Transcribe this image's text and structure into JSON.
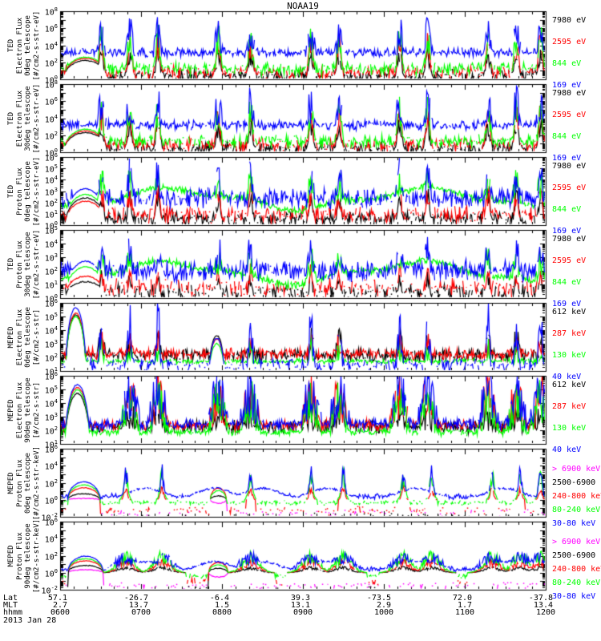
{
  "title": "NOAA19",
  "log_base": "10",
  "footer": {
    "row_labels": [
      "Lat",
      "MLT",
      "hhmm"
    ],
    "date": "2013 Jan 28"
  },
  "colors": {
    "black": "#000000",
    "red": "#ff0000",
    "green": "#00ff00",
    "blue": "#0000ff",
    "magenta": "#ff00ff",
    "frame": "#000000",
    "background": "#ffffff"
  },
  "chart_data": {
    "type": "line",
    "title": "NOAA19",
    "x_axis": {
      "label_rows": [
        "Lat",
        "MLT",
        "hhmm"
      ],
      "hours_span": 6,
      "ticks": [
        {
          "hhmm": "0600",
          "lat": "57.1",
          "mlt": "2.7"
        },
        {
          "hhmm": "0700",
          "lat": "-26.7",
          "mlt": "13.7"
        },
        {
          "hhmm": "0800",
          "lat": "-6.4",
          "mlt": "1.5"
        },
        {
          "hhmm": "0900",
          "lat": "39.3",
          "mlt": "13.1"
        },
        {
          "hhmm": "1000",
          "lat": "-73.5",
          "mlt": "2.9"
        },
        {
          "hhmm": "1100",
          "lat": "72.0",
          "mlt": "1.7"
        },
        {
          "hhmm": "1200",
          "lat": "-37.8",
          "mlt": "13.4"
        }
      ]
    },
    "panels": [
      {
        "id": "ted-electron-0deg",
        "title_lines": [
          "TED",
          "Electron Flux",
          "0deg telescope",
          "[#/cm2-s-str-eV]"
        ],
        "ylim": [
          0,
          8
        ],
        "ytick_exps": [
          "0",
          "2",
          "4",
          "6",
          "8"
        ],
        "legend": [
          {
            "label": "7980 eV",
            "color": "#000000"
          },
          {
            "label": "2595 eV",
            "color": "#ff0000"
          },
          {
            "label": "844 eV",
            "color": "#00ff00"
          },
          {
            "label": "169 eV",
            "color": "#0000ff"
          }
        ],
        "events": [
          0.5,
          0.85,
          1.2,
          1.95,
          2.35,
          3.1,
          3.45,
          4.2,
          4.55,
          5.3,
          5.65,
          5.95
        ],
        "arch": {
          "t": 0.3,
          "w": 0.27
        },
        "series": [
          {
            "label": "7980 eV",
            "color": "#000000",
            "base": 0.45,
            "noise": 0.5,
            "drop": 0.3,
            "event_amp": 3.0,
            "event_w": 0.03,
            "arch_amp": 2.2
          },
          {
            "label": "2595 eV",
            "color": "#ff0000",
            "base": 0.8,
            "noise": 0.55,
            "drop": 0.25,
            "event_amp": 4.3,
            "event_w": 0.028,
            "arch_amp": 2.45
          },
          {
            "label": "844 eV",
            "color": "#00ff00",
            "base": 1.25,
            "noise": 0.55,
            "drop": 0.2,
            "event_amp": 5.1,
            "event_w": 0.03,
            "arch_amp": 2.6
          },
          {
            "label": "169 eV",
            "color": "#0000ff",
            "base": 3.15,
            "noise": 0.4,
            "drop": 0.06,
            "event_amp": 5.8,
            "event_w": 0.05,
            "arch_amp": 3.1
          }
        ]
      },
      {
        "id": "ted-electron-30deg",
        "title_lines": [
          "TED",
          "Electron Flux",
          "30deg telescope",
          "[#/cm2-s-str-eV]"
        ],
        "ylim": [
          0,
          8
        ],
        "ytick_exps": [
          "0",
          "2",
          "4",
          "6",
          "8"
        ],
        "legend": [
          {
            "label": "7980 eV",
            "color": "#000000"
          },
          {
            "label": "2595 eV",
            "color": "#ff0000"
          },
          {
            "label": "844 eV",
            "color": "#00ff00"
          },
          {
            "label": "169 eV",
            "color": "#0000ff"
          }
        ],
        "events": [
          0.5,
          0.85,
          1.2,
          1.95,
          2.35,
          3.1,
          3.45,
          4.2,
          4.55,
          5.3,
          5.65,
          5.95
        ],
        "arch": {
          "t": 0.3,
          "w": 0.27
        },
        "series": [
          {
            "label": "7980 eV",
            "color": "#000000",
            "base": 0.45,
            "noise": 0.5,
            "drop": 0.3,
            "event_amp": 3.2,
            "event_w": 0.03,
            "arch_amp": 2.3
          },
          {
            "label": "2595 eV",
            "color": "#ff0000",
            "base": 0.85,
            "noise": 0.55,
            "drop": 0.25,
            "event_amp": 4.5,
            "event_w": 0.028,
            "arch_amp": 2.5
          },
          {
            "label": "844 eV",
            "color": "#00ff00",
            "base": 1.3,
            "noise": 0.55,
            "drop": 0.2,
            "event_amp": 5.3,
            "event_w": 0.03,
            "arch_amp": 2.7
          },
          {
            "label": "169 eV",
            "color": "#0000ff",
            "base": 3.2,
            "noise": 0.4,
            "drop": 0.06,
            "event_amp": 6.0,
            "event_w": 0.05,
            "arch_amp": 3.1
          }
        ]
      },
      {
        "id": "ted-proton-0deg",
        "title_lines": [
          "TED",
          "Proton Flux",
          "0deg telescope",
          "[#/cm2-s-str-eV]"
        ],
        "ylim": [
          0,
          6
        ],
        "ytick_exps": [
          "0",
          "1",
          "2",
          "3",
          "4",
          "5",
          "6"
        ],
        "legend": [
          {
            "label": "7980 eV",
            "color": "#000000"
          },
          {
            "label": "2595 eV",
            "color": "#ff0000"
          },
          {
            "label": "844 eV",
            "color": "#00ff00"
          },
          {
            "label": "169 eV",
            "color": "#0000ff"
          }
        ],
        "events": [
          0.5,
          0.85,
          1.2,
          1.95,
          2.35,
          3.1,
          3.45,
          4.2,
          4.55,
          5.3,
          5.65,
          5.95
        ],
        "arch": {
          "t": 0.3,
          "w": 0.25
        },
        "series": [
          {
            "label": "7980 eV",
            "color": "#000000",
            "base": 0.55,
            "noise": 0.45,
            "drop": 0.15,
            "event_amp": 2.6,
            "event_w": 0.025,
            "arch_amp": 2.4
          },
          {
            "label": "2595 eV",
            "color": "#ff0000",
            "base": 0.95,
            "noise": 0.55,
            "drop": 0.3,
            "event_amp": 3.1,
            "event_w": 0.025,
            "arch_amp": 2.1
          },
          {
            "label": "844 eV",
            "color": "#00ff00",
            "base": 2.3,
            "noise": 0.22,
            "drop": 0.02,
            "event_amp": 3.9,
            "event_w": 0.05,
            "arch_amp": 2.7,
            "wave": [
              0.8,
              2.0,
              -1.2
            ]
          },
          {
            "label": "169 eV",
            "color": "#0000ff",
            "base": 2.35,
            "noise": 0.65,
            "drop": 0.12,
            "event_amp": 4.6,
            "event_w": 0.04,
            "arch_amp": 3.2
          }
        ]
      },
      {
        "id": "ted-proton-30deg",
        "title_lines": [
          "TED",
          "Proton Flux",
          "30deg telescope",
          "[#/cm2-s-str-eV]"
        ],
        "ylim": [
          0,
          5
        ],
        "ytick_exps": [
          "0",
          "1",
          "2",
          "3",
          "4",
          "5"
        ],
        "legend": [
          {
            "label": "7980 eV",
            "color": "#000000"
          },
          {
            "label": "2595 eV",
            "color": "#ff0000"
          },
          {
            "label": "844 eV",
            "color": "#00ff00"
          },
          {
            "label": "169 eV",
            "color": "#0000ff"
          }
        ],
        "events": [
          0.5,
          0.85,
          1.2,
          1.95,
          2.35,
          3.1,
          3.45,
          4.2,
          4.55,
          5.3,
          5.65,
          5.95
        ],
        "arch": {
          "t": 0.3,
          "w": 0.25
        },
        "series": [
          {
            "label": "7980 eV",
            "color": "#000000",
            "base": 0.45,
            "noise": 0.4,
            "drop": 0.45,
            "event_amp": 1.6,
            "event_w": 0.02,
            "arch_amp": 1.2
          },
          {
            "label": "2595 eV",
            "color": "#ff0000",
            "base": 0.75,
            "noise": 0.5,
            "drop": 0.4,
            "event_amp": 2.0,
            "event_w": 0.02,
            "arch_amp": 1.6
          },
          {
            "label": "844 eV",
            "color": "#00ff00",
            "base": 1.85,
            "noise": 0.2,
            "drop": 0.02,
            "event_amp": 2.9,
            "event_w": 0.05,
            "arch_amp": 2.3,
            "wave": [
              0.7,
              2.0,
              -1.0
            ]
          },
          {
            "label": "169 eV",
            "color": "#0000ff",
            "base": 2.0,
            "noise": 0.55,
            "drop": 0.12,
            "event_amp": 3.7,
            "event_w": 0.045,
            "arch_amp": 2.7
          }
        ]
      },
      {
        "id": "meped-electron-0deg",
        "title_lines": [
          "MEPED",
          "Electron Flux",
          "0deg telescope",
          "[#/cm2-s-str]"
        ],
        "ylim": [
          1,
          6
        ],
        "ytick_exps": [
          "1",
          "2",
          "3",
          "4",
          "5",
          "6"
        ],
        "legend": [
          {
            "label": "612 keV",
            "color": "#000000"
          },
          {
            "label": "287 keV",
            "color": "#ff0000"
          },
          {
            "label": "130 keV",
            "color": "#00ff00"
          },
          {
            "label": "40 keV",
            "color": "#0000ff"
          }
        ],
        "events": [
          0.5,
          0.85,
          1.2,
          2.35,
          3.1,
          3.45,
          4.2,
          4.55,
          5.3,
          5.65,
          5.95
        ],
        "arch": {
          "t": 0.18,
          "w": 0.13
        },
        "arch2": {
          "t": 1.93,
          "w": 0.1
        },
        "series": [
          {
            "label": "612 keV",
            "color": "#000000",
            "base": 2.15,
            "noise": 0.35,
            "drop": 0.12,
            "event_amp": 3.3,
            "event_w": 0.05,
            "arch_amp": 5.1,
            "arch2_amp": 3.6
          },
          {
            "label": "287 keV",
            "color": "#ff0000",
            "base": 2.25,
            "noise": 0.3,
            "drop": 0.1,
            "event_amp": 3.0,
            "event_w": 0.05,
            "arch_amp": 5.25,
            "arch2_amp": 3.35
          },
          {
            "label": "130 keV",
            "color": "#00ff00",
            "base": 1.72,
            "noise": 0.14,
            "drop": 0.1,
            "event_amp": 2.6,
            "event_w": 0.04,
            "arch_amp": 5.0,
            "arch2_amp": 3.0
          },
          {
            "label": "40 keV",
            "color": "#0000ff",
            "base": 1.45,
            "noise": 0.35,
            "drop": 0.35,
            "event_amp": 4.9,
            "event_w": 0.028,
            "arch_amp": 5.65,
            "arch2_amp": 3.4
          }
        ]
      },
      {
        "id": "meped-electron-90deg",
        "title_lines": [
          "MEPED",
          "Electron Flux",
          "90deg telescope",
          "[#/cm2-s-str]"
        ],
        "ylim": [
          1,
          6
        ],
        "ytick_exps": [
          "1",
          "2",
          "3",
          "4",
          "5",
          "6"
        ],
        "legend": [
          {
            "label": "612 keV",
            "color": "#000000"
          },
          {
            "label": "287 keV",
            "color": "#ff0000"
          },
          {
            "label": "130 keV",
            "color": "#00ff00"
          },
          {
            "label": "40 keV",
            "color": "#0000ff"
          }
        ],
        "events": [
          0.85,
          1.2,
          1.95,
          2.35,
          3.1,
          3.45,
          4.2,
          4.55,
          5.3,
          5.65,
          5.95
        ],
        "arch": {
          "t": 0.2,
          "w": 0.16
        },
        "series": [
          {
            "label": "612 keV",
            "color": "#000000",
            "base": 2.25,
            "noise": 0.35,
            "drop": 0.12,
            "event_amp": 3.4,
            "event_w": 0.09,
            "arch_amp": 4.7
          },
          {
            "label": "287 keV",
            "color": "#ff0000",
            "base": 2.35,
            "noise": 0.3,
            "drop": 0.08,
            "event_amp": 4.8,
            "event_w": 0.1,
            "arch_amp": 5.15
          },
          {
            "label": "130 keV",
            "color": "#00ff00",
            "base": 1.85,
            "noise": 0.2,
            "drop": 0.08,
            "event_amp": 4.4,
            "event_w": 0.1,
            "arch_amp": 4.95
          },
          {
            "label": "40 keV",
            "color": "#0000ff",
            "base": 2.45,
            "noise": 0.3,
            "drop": 0.06,
            "event_amp": 5.1,
            "event_w": 0.11,
            "arch_amp": 5.35
          }
        ]
      },
      {
        "id": "meped-proton-0deg",
        "title_lines": [
          "MEPED",
          "Proton Flux",
          "0deg telescope",
          "[#/cm2-s-str-keV]"
        ],
        "ylim": [
          -2,
          6
        ],
        "ytick_exps": [
          "-2",
          "0",
          "2",
          "4",
          "6"
        ],
        "legend": [
          {
            "label": "> 6900 keV",
            "color": "#ff00ff"
          },
          {
            "label": "2500-6900",
            "color": "#000000"
          },
          {
            "label": "240-800 keV",
            "color": "#ff0000"
          },
          {
            "label": "80-240 keV",
            "color": "#00ff00"
          },
          {
            "label": "30-80 keV",
            "color": "#0000ff"
          }
        ],
        "events": [
          0.8,
          1.25,
          2.35,
          3.1,
          3.5,
          4.25,
          4.6,
          5.35,
          5.7,
          5.95
        ],
        "arch": {
          "t": 0.28,
          "w": 0.2
        },
        "arch2": {
          "t": 1.95,
          "w": 0.1
        },
        "series": [
          {
            "label": "> 6900 keV",
            "color": "#ff00ff",
            "base": -1.55,
            "noise": 0.3,
            "drop": 0.82,
            "event_amp": 0,
            "event_w": 0.02,
            "arch_amp": 0.15,
            "arch2_amp": -0.4
          },
          {
            "label": "2500-6900",
            "color": "#000000",
            "base": -1.8,
            "noise": 0.15,
            "drop": 0.93,
            "event_amp": 0,
            "event_w": 0.02,
            "arch_amp": 0.7,
            "arch2_amp": 0.45
          },
          {
            "label": "240-800 keV",
            "color": "#ff0000",
            "base": -1.25,
            "noise": 0.35,
            "drop": 0.72,
            "event_amp": 1.4,
            "event_w": 0.02,
            "arch_amp": 1.4,
            "arch2_amp": 1.35
          },
          {
            "label": "80-240 keV",
            "color": "#00ff00",
            "base": -0.35,
            "noise": 0.2,
            "drop": 0.45,
            "event_amp": 2.9,
            "event_w": 0.025,
            "arch_amp": 1.75,
            "arch2_amp": 1.05
          },
          {
            "label": "30-80 keV",
            "color": "#0000ff",
            "base": 0.35,
            "noise": 0.28,
            "drop": 0.06,
            "event_amp": 3.3,
            "event_w": 0.022,
            "arch_amp": 2.1,
            "broad": {
              "times": [
                1.05,
                1.9,
                2.5,
                3.3,
                4.4,
                5.5
              ],
              "amp": 1.35,
              "w": 0.22
            }
          }
        ]
      },
      {
        "id": "meped-proton-90deg",
        "title_lines": [
          "MEPED",
          "Proton Flux",
          "90deg telescope",
          "[#/cm2-s-str-keV]"
        ],
        "ylim": [
          -2,
          6
        ],
        "ytick_exps": [
          "-2",
          "0",
          "2",
          "4",
          "6"
        ],
        "legend": [
          {
            "label": "> 6900 keV",
            "color": "#ff00ff"
          },
          {
            "label": "2500-6900",
            "color": "#000000"
          },
          {
            "label": "240-800 keV",
            "color": "#ff0000"
          },
          {
            "label": "80-240 keV",
            "color": "#00ff00"
          },
          {
            "label": "30-80 keV",
            "color": "#0000ff"
          }
        ],
        "events": [
          0.8,
          1.25,
          2.35,
          3.1,
          3.5,
          4.25,
          4.6,
          5.35,
          5.7,
          5.95
        ],
        "arch": {
          "t": 0.3,
          "w": 0.22
        },
        "arch2": {
          "t": 1.95,
          "w": 0.12
        },
        "series": [
          {
            "label": "> 6900 keV",
            "color": "#ff00ff",
            "base": -1.55,
            "noise": 0.3,
            "drop": 0.8,
            "event_amp": 0,
            "event_w": 0.05,
            "arch_amp": 0.35,
            "arch2_amp": -0.5
          },
          {
            "label": "2500-6900",
            "color": "#000000",
            "base": -1.75,
            "noise": 0.2,
            "drop": 0.88,
            "event_amp": 0.6,
            "event_w": 0.1,
            "arch_amp": 0.85,
            "arch2_amp": 0.5
          },
          {
            "label": "240-800 keV",
            "color": "#ff0000",
            "base": -1.1,
            "noise": 0.35,
            "drop": 0.6,
            "event_amp": 1.25,
            "event_w": 0.1,
            "arch_amp": 1.4,
            "arch2_amp": 1.2
          },
          {
            "label": "80-240 keV",
            "color": "#00ff00",
            "base": -0.4,
            "noise": 0.25,
            "drop": 0.35,
            "event_amp": 2.0,
            "event_w": 0.1,
            "arch_amp": 1.65,
            "arch2_amp": 0.9
          },
          {
            "label": "30-80 keV",
            "color": "#0000ff",
            "base": 0.35,
            "noise": 0.25,
            "drop": 0.05,
            "event_amp": 1.9,
            "event_w": 0.14,
            "arch_amp": 1.95,
            "broad": {
              "times": [
                1.05,
                1.9,
                2.5,
                3.3,
                4.4,
                5.5
              ],
              "amp": 1.3,
              "w": 0.22
            }
          }
        ]
      }
    ]
  }
}
